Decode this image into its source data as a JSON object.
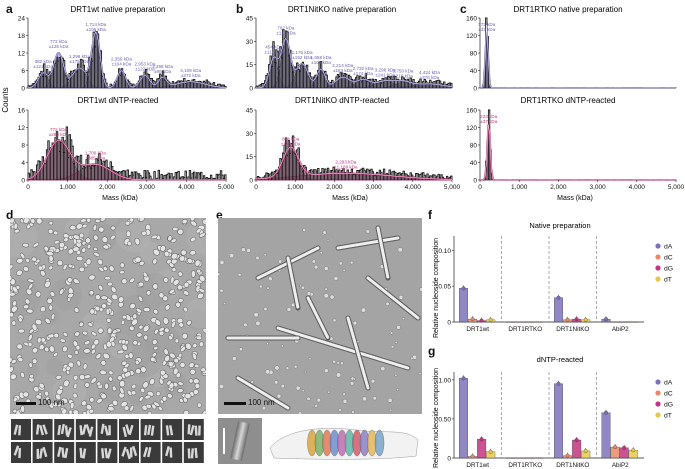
{
  "panels": {
    "a": {
      "letter": "a",
      "top_title": "DRT1wt native preparation",
      "bottom_title": "DRT1wt dNTP-reacted",
      "ylabel": "Counts",
      "xlabel": "Mass (kDa)",
      "top_annotations": [
        "382 kDa ±121 kDa",
        "772 kDa ±126 kDa",
        "1,296 kDa ±175 kDa",
        "1,714 kDa ±106 kDa",
        "2,359 kDa ±104 kDa",
        "2,953 kDa ±122 kDa",
        "3,398 kDa ±98 kDa",
        "4,109 kDa ±372 kDa"
      ],
      "bottom_annotations": [
        "772 kDa ±289 kDa",
        "1,700 kDa ±385 kDa"
      ]
    },
    "b": {
      "letter": "b",
      "top_title": "DRT1NitKO native preparation",
      "bottom_title": "DRT1NitKO dNTP-reacted",
      "xlabel": "Mass (kDa)",
      "top_annotations": [
        "454 kDa ±111 kDa",
        "762 kDa ±115 kDa",
        "1,176 kDa ±152 kDa",
        "1,658 kDa ±105 kDa",
        "2,214 kDa ±183 kDa",
        "2,732 kDa ±174 kDa",
        "3,298 kDa ±241 kDa",
        "3,750 kDa ±216 kDa",
        "4,424 kDa ±376 kDa"
      ],
      "bottom_annotations": [
        "884 kDa ±195 kDa",
        "2,293 kDa ±1,189 kDa"
      ]
    },
    "c": {
      "letter": "c",
      "top_title": "DRT1RTKO native preparation",
      "bottom_title": "DRT1RTKO dNTP-reacted",
      "xlabel": "Mass (kDa)",
      "top_annotations": [
        "172 kDa ±33 kDa"
      ],
      "bottom_annotations": [
        "223 kDa ±37 kDa"
      ]
    },
    "d": {
      "letter": "d",
      "scalebar": "100 nm"
    },
    "e": {
      "letter": "e",
      "scalebar": "100 nm"
    },
    "f": {
      "letter": "f",
      "title": "Native preparation",
      "ylabel": "Relative nucleoside composition"
    },
    "g": {
      "letter": "g",
      "title": "dNTP-reacted",
      "ylabel": "Relative nucleoside composition"
    }
  },
  "legend": [
    {
      "label": "dA",
      "color": "#7e72b8"
    },
    {
      "label": "dC",
      "color": "#e88a6a"
    },
    {
      "label": "dG",
      "color": "#c2357f"
    },
    {
      "label": "dT",
      "color": "#e6c84a"
    }
  ],
  "chart_data": [
    {
      "type": "bar",
      "title": "Native preparation",
      "ylabel": "Relative nucleoside composition",
      "categories": [
        "DRT1wt",
        "DRT1RTKO",
        "DRT1NitKO",
        "AbiP2"
      ],
      "ylim": [
        0,
        0.12
      ],
      "yticks": [
        0,
        0.05,
        0.1
      ],
      "series": [
        {
          "name": "dA",
          "values": [
            0.047,
            0.0,
            0.034,
            0.004
          ]
        },
        {
          "name": "dC",
          "values": [
            0.004,
            0.0,
            0.003,
            0.0
          ]
        },
        {
          "name": "dG",
          "values": [
            0.002,
            0.0,
            0.004,
            0.0
          ]
        },
        {
          "name": "dT",
          "values": [
            0.003,
            0.0,
            0.003,
            0.0
          ]
        }
      ]
    },
    {
      "type": "bar",
      "title": "dNTP-reacted",
      "ylabel": "Relative nucleoside composition",
      "categories": [
        "DRT1wt",
        "DRT1RTKO",
        "DRT1NitKO",
        "AbiP2"
      ],
      "ylim": [
        0,
        1.1
      ],
      "yticks": [
        0,
        0.5,
        1.0
      ],
      "series": [
        {
          "name": "dA",
          "values": [
            1.02,
            0.0,
            0.95,
            0.58
          ]
        },
        {
          "name": "dC",
          "values": [
            0.02,
            0.0,
            0.03,
            0.14
          ]
        },
        {
          "name": "dG",
          "values": [
            0.24,
            0.0,
            0.23,
            0.13
          ]
        },
        {
          "name": "dT",
          "values": [
            0.08,
            0.0,
            0.09,
            0.1
          ]
        }
      ]
    }
  ],
  "mass_axes": {
    "x_ticks": [
      "0",
      "1,000",
      "2,000",
      "3,000",
      "4,000",
      "5,000"
    ],
    "a_top_yticks": [
      "0",
      "6",
      "12",
      "18",
      "24"
    ],
    "a_bot_yticks": [
      "0",
      "4",
      "8",
      "12",
      "16"
    ],
    "b_top_yticks": [
      "0",
      "15",
      "30",
      "45"
    ],
    "b_bot_yticks": [
      "0",
      "15",
      "30",
      "45"
    ],
    "c_top_yticks": [
      "0",
      "40",
      "80",
      "120",
      "160"
    ],
    "c_bot_yticks": [
      "0",
      "40",
      "80",
      "120",
      "160"
    ]
  },
  "colors": {
    "native_fill": "#9d96c8",
    "native_line": "#5b4f9a",
    "dntp_fill": "#d977a8",
    "dntp_line": "#b2236f",
    "hist": "#111111"
  }
}
